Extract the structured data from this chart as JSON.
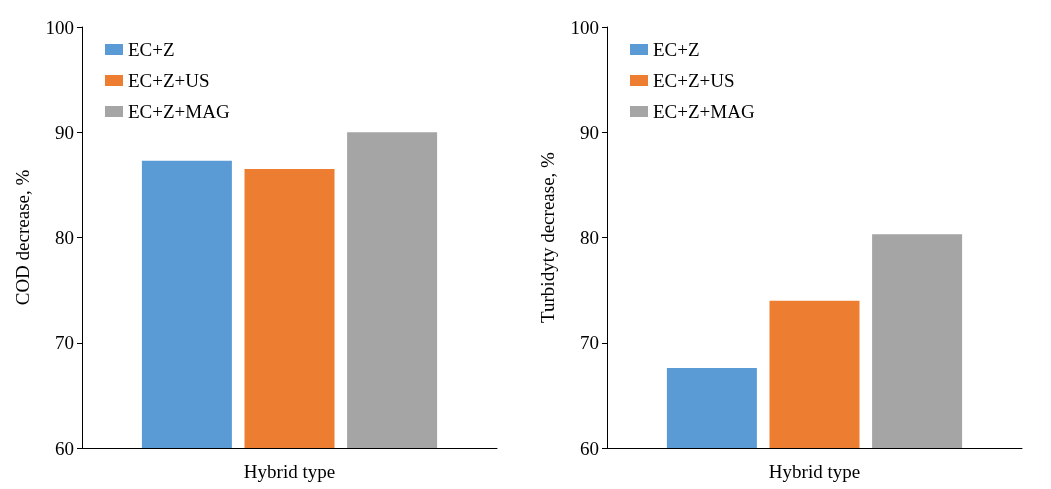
{
  "chart_data": [
    {
      "type": "bar",
      "categories": [
        null
      ],
      "xlabel": "Hybrid type",
      "ylabel": "COD decrease, %",
      "ylim": [
        60,
        100
      ],
      "yticks": [
        60,
        70,
        80,
        90,
        100
      ],
      "grid": false,
      "legend": "top left",
      "series": [
        {
          "name": "EC+Z",
          "color": "#5b9bd5",
          "values": [
            87.3
          ]
        },
        {
          "name": "EC+Z+US",
          "color": "#ed7d31",
          "values": [
            86.5
          ]
        },
        {
          "name": "EC+Z+MAG",
          "color": "#a5a5a5",
          "values": [
            90.0
          ]
        }
      ]
    },
    {
      "type": "bar",
      "categories": [
        null
      ],
      "xlabel": "Hybrid type",
      "ylabel": "Turbidyty decrease, %",
      "ylim": [
        60,
        100
      ],
      "yticks": [
        60,
        70,
        80,
        90,
        100
      ],
      "grid": false,
      "legend": "top left",
      "series": [
        {
          "name": "EC+Z",
          "color": "#5b9bd5",
          "values": [
            67.6
          ]
        },
        {
          "name": "EC+Z+US",
          "color": "#ed7d31",
          "values": [
            74.0
          ]
        },
        {
          "name": "EC+Z+MAG",
          "color": "#a5a5a5",
          "values": [
            80.3
          ]
        }
      ]
    }
  ]
}
